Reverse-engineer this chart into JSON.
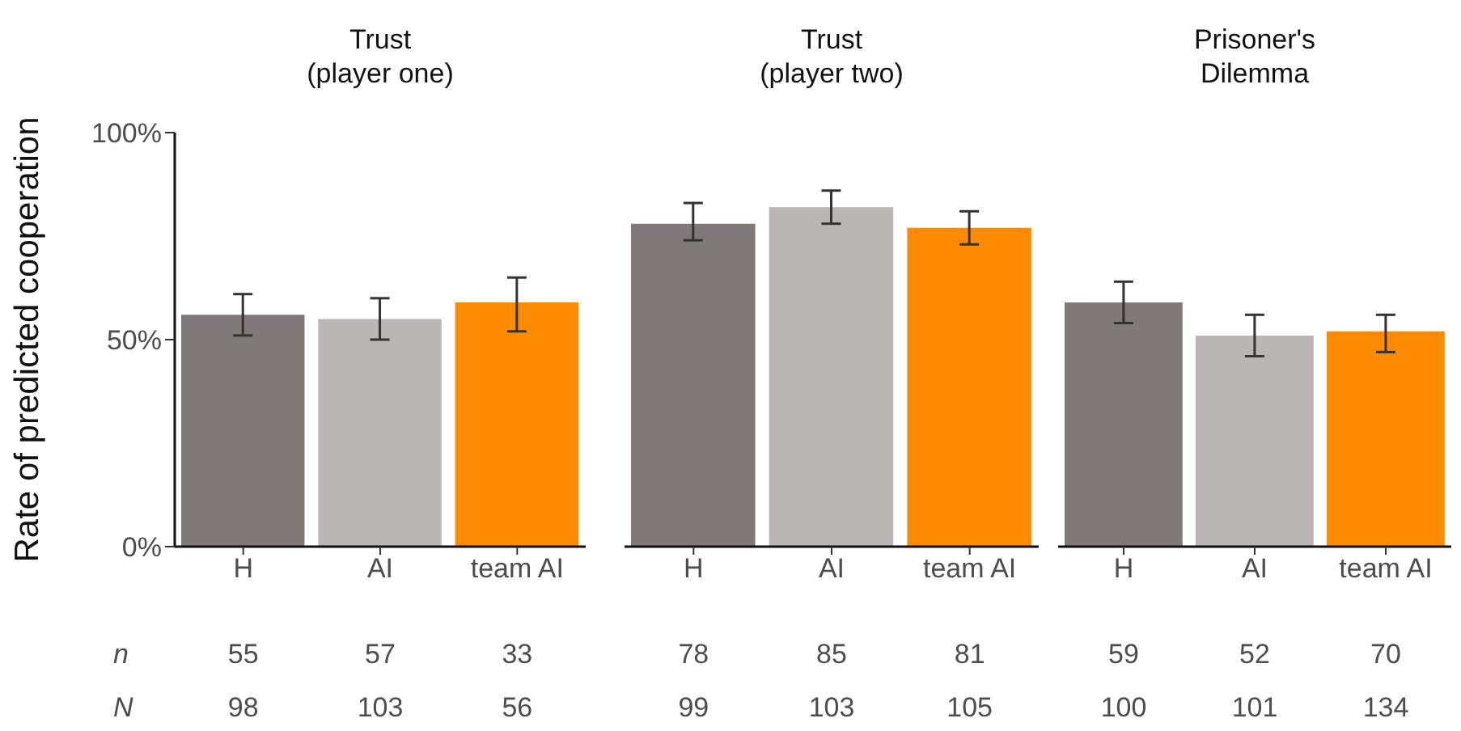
{
  "chart_data": [
    {
      "type": "bar",
      "title": "Trust\n(player one)",
      "ylabel": "Rate of predicted cooperation",
      "categories": [
        "H",
        "AI",
        "team AI"
      ],
      "values": [
        56,
        55,
        59
      ],
      "colors": [
        "#7f7a77",
        "#b9b6b5",
        "#ff8c00"
      ],
      "errors": [
        [
          51,
          61
        ],
        [
          50,
          60
        ],
        [
          52,
          65
        ]
      ],
      "ylim": [
        0,
        100
      ],
      "yticks": [
        {
          "value": 0,
          "label": "0%"
        },
        {
          "value": 50,
          "label": "50%"
        },
        {
          "value": 100,
          "label": "100%"
        }
      ],
      "annotations": [
        "n",
        "N",
        "55",
        "57",
        "33",
        "98",
        "103",
        "56"
      ]
    },
    {
      "type": "bar",
      "title": "Trust\n(player two)",
      "categories": [
        "H",
        "AI",
        "team AI"
      ],
      "values": [
        78,
        82,
        77
      ],
      "colors": [
        "#7f7a77",
        "#b9b6b5",
        "#ff8c00"
      ],
      "errors": [
        [
          74,
          83
        ],
        [
          78,
          86
        ],
        [
          73,
          81
        ]
      ],
      "ylim": [
        0,
        100
      ],
      "tick_labels": "x",
      "annotations": [
        "78",
        "85",
        "81",
        "99",
        "103",
        "105"
      ]
    },
    {
      "type": "bar",
      "title": "Prisoner's\nDilemma",
      "categories": [
        "H",
        "AI",
        "team AI"
      ],
      "values": [
        59,
        51,
        52
      ],
      "colors": [
        "#7f7a77",
        "#b9b6b5",
        "#ff8c00"
      ],
      "errors": [
        [
          54,
          64
        ],
        [
          46,
          56
        ],
        [
          47,
          56
        ]
      ],
      "ylim": [
        0,
        100
      ],
      "tick_labels": "x",
      "annotations": [
        "59",
        "52",
        "70",
        "100",
        "101",
        "134"
      ]
    }
  ]
}
